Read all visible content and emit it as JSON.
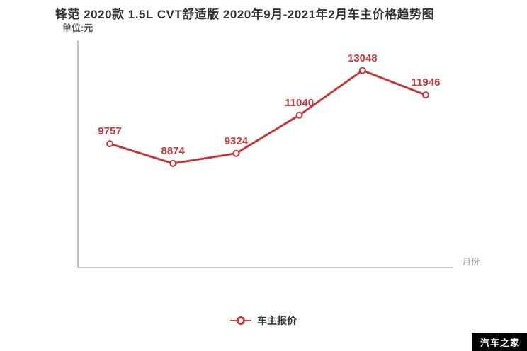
{
  "header": {
    "title": "锋范 2020款 1.5L CVT舒适版 2020年9月-2021年2月车主价格趋势图",
    "unit_label": "单位:元"
  },
  "chart_data": {
    "type": "line",
    "title": "锋范 2020款 1.5L CVT舒适版 2020年9月-2021年2月车主价格趋势图",
    "xlabel": "月份",
    "ylabel": "单位:元",
    "x_tick_labels": [],
    "series": [
      {
        "name": "车主报价",
        "values": [
          9757,
          8874,
          9324,
          11040,
          13048,
          11946
        ]
      }
    ],
    "point_labels": [
      "9757",
      "8874",
      "9324",
      "11040",
      "13048",
      "11946"
    ],
    "ylim": [
      4200,
      14400
    ],
    "grid": false,
    "legend_position": "bottom",
    "marker": "open-circle"
  },
  "legend": {
    "label": "车主报价"
  },
  "watermark": {
    "text": "汽车之家"
  },
  "colors": {
    "line": "#c03b3e",
    "point_label": "#c03b3e",
    "marker_fill": "#ffffff",
    "axis": "#8a8a8a",
    "title": "#333333",
    "subtitle": "#555555",
    "axis_label": "#999999",
    "watermark_bg": "#000000",
    "watermark_fg": "#ffffff"
  }
}
